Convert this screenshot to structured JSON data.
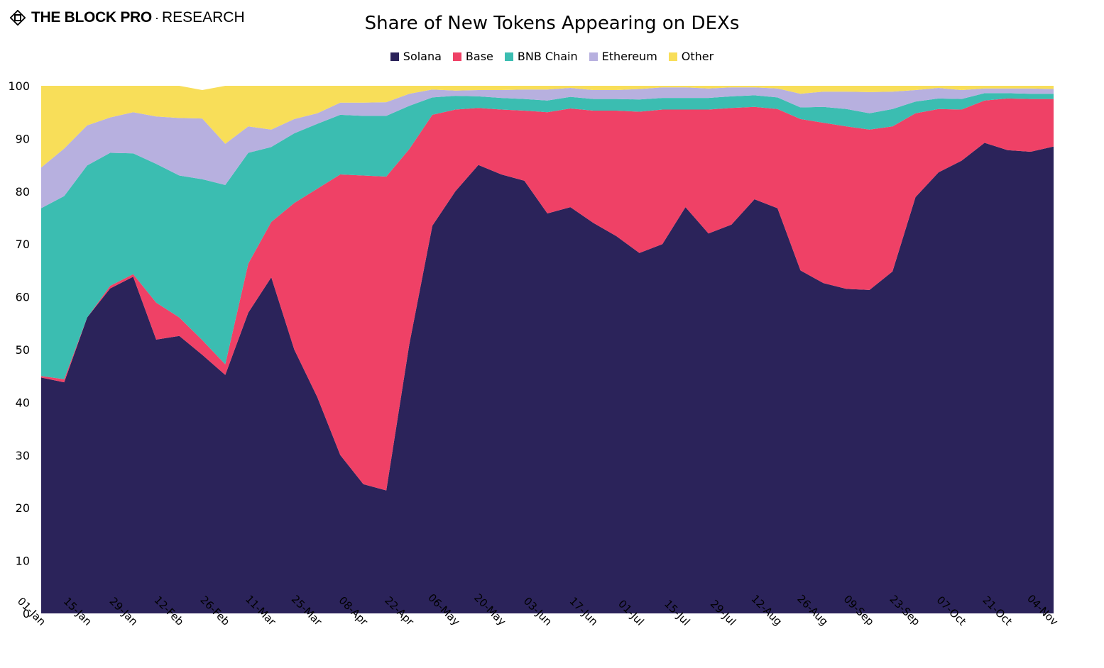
{
  "brand": {
    "name": "THE BLOCK PRO",
    "separator": "·",
    "suffix": "RESEARCH"
  },
  "chart_data": {
    "type": "area",
    "stacked": true,
    "title": "Share of New Tokens Appearing on DEXs",
    "xlabel": "",
    "ylabel": "",
    "ylim": [
      0,
      100
    ],
    "yticks": [
      0,
      10,
      20,
      30,
      40,
      50,
      60,
      70,
      80,
      90,
      100
    ],
    "grid": false,
    "legend_position": "top-center",
    "x_tick_labels": [
      "01-Jan",
      "15-Jan",
      "29-Jan",
      "12-Feb",
      "26-Feb",
      "11-Mar",
      "25-Mar",
      "08-Apr",
      "22-Apr",
      "06-May",
      "20-May",
      "03-Jun",
      "17-Jun",
      "01-Jul",
      "15-Jul",
      "29-Jul",
      "12-Aug",
      "26-Aug",
      "09-Sep",
      "23-Sep",
      "07-Oct",
      "21-Oct",
      "04-Nov"
    ],
    "x": [
      "01-Jan",
      "08-Jan",
      "15-Jan",
      "22-Jan",
      "29-Jan",
      "05-Feb",
      "12-Feb",
      "19-Feb",
      "26-Feb",
      "04-Mar",
      "11-Mar",
      "18-Mar",
      "25-Mar",
      "01-Apr",
      "08-Apr",
      "15-Apr",
      "22-Apr",
      "29-Apr",
      "06-May",
      "13-May",
      "20-May",
      "27-May",
      "03-Jun",
      "10-Jun",
      "17-Jun",
      "24-Jun",
      "01-Jul",
      "08-Jul",
      "15-Jul",
      "22-Jul",
      "29-Jul",
      "05-Aug",
      "12-Aug",
      "19-Aug",
      "26-Aug",
      "02-Sep",
      "09-Sep",
      "16-Sep",
      "23-Sep",
      "30-Sep",
      "07-Oct",
      "14-Oct",
      "21-Oct",
      "28-Oct",
      "04-Nov"
    ],
    "series": [
      {
        "name": "Solana",
        "color": "#2b235a",
        "values": [
          44.7,
          43.8,
          56.1,
          61.6,
          63.8,
          51.9,
          52.6,
          49.0,
          45.2,
          57.0,
          63.7,
          50.0,
          41.0,
          30.0,
          24.5,
          23.3,
          51.0,
          73.5,
          80.0,
          85.0,
          83.2,
          82.0,
          75.8,
          77.0,
          74.0,
          71.5,
          68.3,
          70.0,
          77.0,
          72.0,
          73.7,
          78.5,
          76.8,
          65.0,
          62.6,
          61.5,
          61.3,
          64.8,
          78.9,
          83.6,
          85.8,
          89.2,
          87.8,
          87.5,
          88.5
        ]
      },
      {
        "name": "Base",
        "color": "#ef4166",
        "values": [
          0.3,
          0.6,
          0.0,
          0.5,
          0.5,
          7.0,
          3.5,
          2.8,
          2.0,
          9.3,
          10.5,
          27.8,
          39.5,
          53.2,
          58.5,
          59.5,
          37.0,
          21.0,
          15.5,
          10.8,
          12.3,
          13.3,
          19.2,
          18.7,
          21.3,
          23.8,
          26.8,
          25.5,
          18.5,
          23.5,
          22.1,
          17.5,
          18.8,
          28.7,
          30.4,
          30.8,
          30.4,
          27.5,
          15.9,
          12.0,
          9.7,
          8.0,
          9.8,
          10.0,
          9.0
        ]
      },
      {
        "name": "BNB Chain",
        "color": "#3bbdb1",
        "values": [
          31.8,
          34.7,
          28.8,
          25.2,
          22.9,
          26.3,
          26.9,
          30.5,
          34.0,
          21.0,
          14.2,
          13.2,
          12.3,
          11.3,
          11.3,
          11.5,
          8.2,
          3.3,
          2.6,
          2.2,
          2.2,
          2.2,
          2.2,
          2.2,
          2.2,
          2.2,
          2.3,
          2.2,
          2.2,
          2.2,
          2.2,
          2.2,
          2.2,
          2.2,
          3.0,
          3.3,
          3.1,
          3.3,
          2.2,
          2.0,
          2.0,
          1.4,
          1.0,
          1.0,
          1.0
        ]
      },
      {
        "name": "Ethereum",
        "color": "#b7b0df",
        "values": [
          7.7,
          9.0,
          7.6,
          6.7,
          7.8,
          9.0,
          10.9,
          11.5,
          7.8,
          5.0,
          3.3,
          2.7,
          2.0,
          2.3,
          2.5,
          2.6,
          2.3,
          1.5,
          1.0,
          1.2,
          1.5,
          1.8,
          2.1,
          1.7,
          1.7,
          1.7,
          2.0,
          2.0,
          2.0,
          1.8,
          1.7,
          1.5,
          1.7,
          2.6,
          2.9,
          3.3,
          4.0,
          3.3,
          2.2,
          2.0,
          1.7,
          0.9,
          0.9,
          1.0,
          0.9
        ]
      },
      {
        "name": "Other",
        "color": "#f8de59",
        "values": [
          15.5,
          11.9,
          7.5,
          6.0,
          5.0,
          5.8,
          6.1,
          5.4,
          11.0,
          7.7,
          8.3,
          6.3,
          5.2,
          3.2,
          3.2,
          3.1,
          1.5,
          0.7,
          0.9,
          0.8,
          0.8,
          0.7,
          0.7,
          0.4,
          0.8,
          0.8,
          0.6,
          0.3,
          0.3,
          0.5,
          0.3,
          0.3,
          0.5,
          1.5,
          1.1,
          1.1,
          1.2,
          1.1,
          0.8,
          0.4,
          0.8,
          0.5,
          0.5,
          0.5,
          0.6
        ]
      }
    ]
  }
}
